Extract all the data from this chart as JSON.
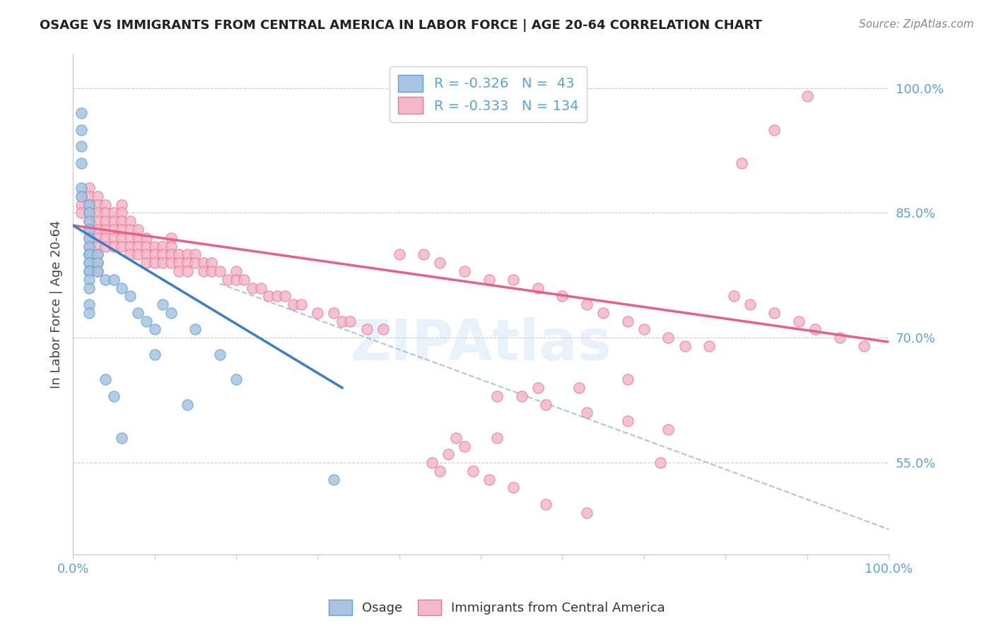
{
  "title": "OSAGE VS IMMIGRANTS FROM CENTRAL AMERICA IN LABOR FORCE | AGE 20-64 CORRELATION CHART",
  "source_text": "Source: ZipAtlas.com",
  "ylabel": "In Labor Force | Age 20-64",
  "xlim": [
    0.0,
    1.0
  ],
  "ylim": [
    0.44,
    1.04
  ],
  "y_ticks_right": [
    0.55,
    0.7,
    0.85,
    1.0
  ],
  "y_tick_labels_right": [
    "55.0%",
    "70.0%",
    "85.0%",
    "100.0%"
  ],
  "legend_R1": "-0.326",
  "legend_N1": "43",
  "legend_R2": "-0.333",
  "legend_N2": "134",
  "color_osage_fill": "#a8c4e0",
  "color_osage_edge": "#5ba3d9",
  "color_immigrants_fill": "#f4b8c8",
  "color_immigrants_edge": "#e87898",
  "color_line_osage": "#3a7fc1",
  "color_line_immigrants": "#e8608a",
  "color_line_dashed": "#a0c0e0",
  "color_title": "#222222",
  "color_source": "#888888",
  "color_axis_label": "#444444",
  "color_tick": "#5ba3d9",
  "background_color": "#ffffff",
  "watermark_text": "ZIPAtlas",
  "osage_x": [
    0.01,
    0.01,
    0.01,
    0.01,
    0.01,
    0.01,
    0.02,
    0.02,
    0.02,
    0.02,
    0.02,
    0.02,
    0.02,
    0.02,
    0.02,
    0.02,
    0.02,
    0.02,
    0.02,
    0.02,
    0.02,
    0.02,
    0.03,
    0.03,
    0.03,
    0.04,
    0.04,
    0.05,
    0.05,
    0.06,
    0.06,
    0.07,
    0.08,
    0.09,
    0.1,
    0.1,
    0.11,
    0.12,
    0.14,
    0.15,
    0.18,
    0.2,
    0.32
  ],
  "osage_y": [
    0.97,
    0.95,
    0.93,
    0.91,
    0.88,
    0.87,
    0.86,
    0.85,
    0.84,
    0.83,
    0.82,
    0.81,
    0.8,
    0.8,
    0.79,
    0.79,
    0.78,
    0.78,
    0.77,
    0.76,
    0.74,
    0.73,
    0.8,
    0.79,
    0.78,
    0.77,
    0.65,
    0.77,
    0.63,
    0.76,
    0.58,
    0.75,
    0.73,
    0.72,
    0.71,
    0.68,
    0.74,
    0.73,
    0.62,
    0.71,
    0.68,
    0.65,
    0.53
  ],
  "imm_x": [
    0.01,
    0.01,
    0.01,
    0.02,
    0.02,
    0.02,
    0.02,
    0.02,
    0.02,
    0.02,
    0.02,
    0.02,
    0.03,
    0.03,
    0.03,
    0.03,
    0.03,
    0.03,
    0.03,
    0.03,
    0.03,
    0.03,
    0.04,
    0.04,
    0.04,
    0.04,
    0.04,
    0.04,
    0.05,
    0.05,
    0.05,
    0.05,
    0.05,
    0.06,
    0.06,
    0.06,
    0.06,
    0.06,
    0.06,
    0.07,
    0.07,
    0.07,
    0.07,
    0.07,
    0.08,
    0.08,
    0.08,
    0.08,
    0.09,
    0.09,
    0.09,
    0.09,
    0.1,
    0.1,
    0.1,
    0.11,
    0.11,
    0.11,
    0.12,
    0.12,
    0.12,
    0.12,
    0.13,
    0.13,
    0.13,
    0.14,
    0.14,
    0.14,
    0.15,
    0.15,
    0.16,
    0.16,
    0.17,
    0.17,
    0.18,
    0.19,
    0.2,
    0.2,
    0.21,
    0.22,
    0.23,
    0.24,
    0.25,
    0.26,
    0.27,
    0.28,
    0.3,
    0.32,
    0.33,
    0.34,
    0.36,
    0.38,
    0.4,
    0.43,
    0.45,
    0.48,
    0.51,
    0.54,
    0.57,
    0.6,
    0.63,
    0.65,
    0.68,
    0.7,
    0.73,
    0.75,
    0.78,
    0.81,
    0.83,
    0.86,
    0.89,
    0.91,
    0.94,
    0.97,
    0.72,
    0.55,
    0.58,
    0.63,
    0.68,
    0.73,
    0.62,
    0.57,
    0.52,
    0.45,
    0.82,
    0.86,
    0.9,
    0.68,
    0.52,
    0.47,
    0.48,
    0.46,
    0.44,
    0.49,
    0.51,
    0.54,
    0.58,
    0.63
  ],
  "imm_y": [
    0.87,
    0.86,
    0.85,
    0.88,
    0.87,
    0.86,
    0.85,
    0.84,
    0.83,
    0.82,
    0.81,
    0.8,
    0.87,
    0.86,
    0.85,
    0.84,
    0.83,
    0.82,
    0.81,
    0.8,
    0.79,
    0.78,
    0.86,
    0.85,
    0.84,
    0.83,
    0.82,
    0.81,
    0.85,
    0.84,
    0.83,
    0.82,
    0.81,
    0.86,
    0.85,
    0.84,
    0.83,
    0.82,
    0.81,
    0.84,
    0.83,
    0.82,
    0.81,
    0.8,
    0.83,
    0.82,
    0.81,
    0.8,
    0.82,
    0.81,
    0.8,
    0.79,
    0.81,
    0.8,
    0.79,
    0.81,
    0.8,
    0.79,
    0.82,
    0.81,
    0.8,
    0.79,
    0.8,
    0.79,
    0.78,
    0.8,
    0.79,
    0.78,
    0.8,
    0.79,
    0.79,
    0.78,
    0.79,
    0.78,
    0.78,
    0.77,
    0.78,
    0.77,
    0.77,
    0.76,
    0.76,
    0.75,
    0.75,
    0.75,
    0.74,
    0.74,
    0.73,
    0.73,
    0.72,
    0.72,
    0.71,
    0.71,
    0.8,
    0.8,
    0.79,
    0.78,
    0.77,
    0.77,
    0.76,
    0.75,
    0.74,
    0.73,
    0.72,
    0.71,
    0.7,
    0.69,
    0.69,
    0.75,
    0.74,
    0.73,
    0.72,
    0.71,
    0.7,
    0.69,
    0.55,
    0.63,
    0.62,
    0.61,
    0.6,
    0.59,
    0.64,
    0.64,
    0.63,
    0.54,
    0.91,
    0.95,
    0.99,
    0.65,
    0.58,
    0.58,
    0.57,
    0.56,
    0.55,
    0.54,
    0.53,
    0.52,
    0.5,
    0.49
  ],
  "osage_line_x": [
    0.0,
    0.33
  ],
  "osage_line_y": [
    0.835,
    0.64
  ],
  "imm_line_x": [
    0.0,
    1.0
  ],
  "imm_line_y": [
    0.835,
    0.695
  ],
  "dash_line_x": [
    0.18,
    1.0
  ],
  "dash_line_y": [
    0.765,
    0.47
  ]
}
